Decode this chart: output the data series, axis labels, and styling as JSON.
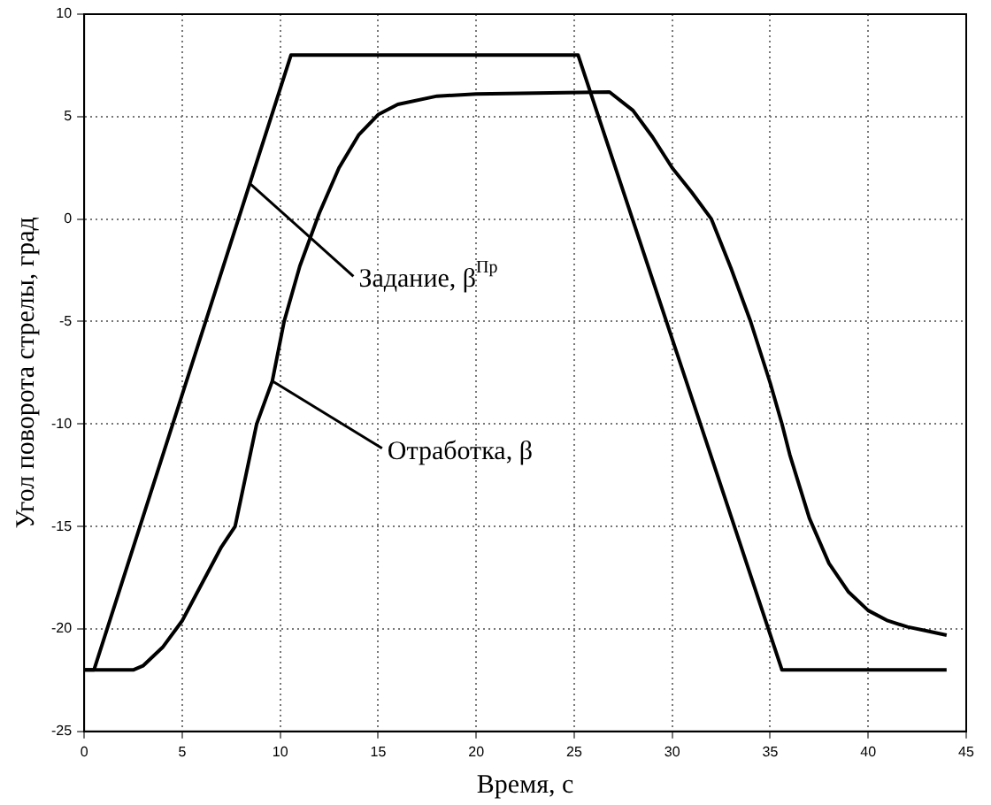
{
  "chart_data": {
    "type": "line",
    "xlabel": "Время, с",
    "ylabel": "Угол поворота стрелы, град",
    "x": [
      0,
      0.5,
      10.55,
      25.2,
      35.6,
      44
    ],
    "series": [
      {
        "color": "#000000",
        "values": [
          -22,
          -22,
          8,
          8,
          -22,
          -22
        ]
      },
      {
        "color": "#000000",
        "x": [
          0,
          2.5,
          3,
          4,
          5,
          6,
          7,
          7.7,
          8.8,
          9.6,
          10.2,
          11,
          12,
          13,
          14,
          15,
          16,
          18,
          20,
          26.8,
          28,
          29,
          30,
          31,
          32,
          33,
          34,
          35,
          35.6,
          36,
          37,
          38,
          39,
          40,
          41,
          42,
          43,
          44
        ],
        "values": [
          -22,
          -22,
          -21.8,
          -20.9,
          -19.6,
          -17.8,
          -16,
          -15,
          -10,
          -7.9,
          -5,
          -2.3,
          0.3,
          2.5,
          4.1,
          5.1,
          5.6,
          6,
          6.1,
          6.2,
          5.3,
          4,
          2.5,
          1.3,
          0,
          -2.4,
          -5,
          -8,
          -10,
          -11.5,
          -14.6,
          -16.8,
          -18.2,
          -19.1,
          -19.6,
          -19.9,
          -20.1,
          -20.3
        ]
      }
    ],
    "xlim": [
      0,
      45
    ],
    "xticks": [
      0,
      5,
      10,
      15,
      20,
      25,
      30,
      35,
      40,
      45
    ],
    "ylim": [
      -25,
      10
    ],
    "yticks": [
      -25,
      -20,
      -15,
      -10,
      -5,
      0,
      5,
      10
    ],
    "grid": true,
    "marker": "none",
    "line_style": "solid",
    "annotations": [
      {
        "text": "Задание, β$^{Пр}$",
        "x": 8.5,
        "y": 1.7
      },
      {
        "text": "Отработка, β",
        "x": 9.6,
        "y": -7.9
      }
    ]
  }
}
